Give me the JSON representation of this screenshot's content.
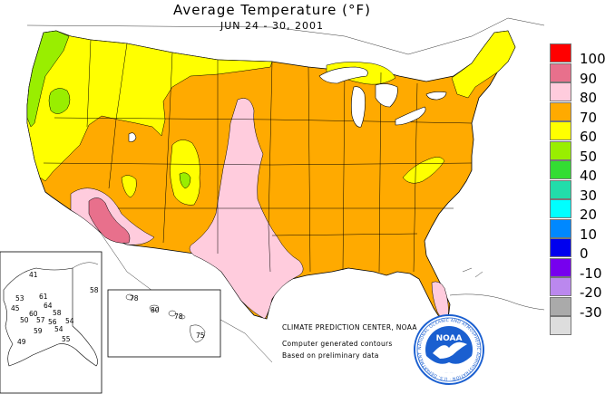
{
  "header": {
    "title": "Average Temperature (°F)",
    "subtitle": "JUN 24 - 30, 2001"
  },
  "legend": {
    "items": [
      {
        "label": "100",
        "color": "#ff0000"
      },
      {
        "label": "90",
        "color": "#e8708c"
      },
      {
        "label": "80",
        "color": "#ffccdd"
      },
      {
        "label": "70",
        "color": "#ffaa00"
      },
      {
        "label": "60",
        "color": "#ffff00"
      },
      {
        "label": "50",
        "color": "#99ee00"
      },
      {
        "label": "40",
        "color": "#33dd33"
      },
      {
        "label": "30",
        "color": "#22ddaa"
      },
      {
        "label": "20",
        "color": "#00ffff"
      },
      {
        "label": "10",
        "color": "#0088ff"
      },
      {
        "label": "0",
        "color": "#0000ee"
      },
      {
        "label": "-10",
        "color": "#7700ee"
      },
      {
        "label": "-20",
        "color": "#bb88ee"
      },
      {
        "label": "-30",
        "color": "#aaaaaa"
      },
      {
        "label": "",
        "color": "#dddddd"
      }
    ]
  },
  "alaska": {
    "values": [
      "41",
      "58",
      "53",
      "61",
      "64",
      "45",
      "60",
      "58",
      "50",
      "57",
      "56",
      "54",
      "59",
      "54",
      "49",
      "55"
    ]
  },
  "hawaii": {
    "values": [
      "78",
      "80",
      "78",
      "75"
    ]
  },
  "credits": {
    "line1": "CLIMATE PREDICTION CENTER, NOAA",
    "line2": "Computer generated contours",
    "line3": "Based on preliminary data"
  },
  "logo": {
    "acronym": "NOAA",
    "ring_text": "NATIONAL OCEANIC AND ATMOSPHERIC ADMINISTRATION · U.S. DEPARTMENT OF COMMERCE"
  },
  "colors": {
    "zone_80": "#ffccdd",
    "zone_90": "#e8708c",
    "zone_70": "#ffaa00",
    "zone_60": "#ffff00",
    "zone_50": "#99ee00",
    "water": "#ffffff",
    "noaa_blue": "#1a5fd0"
  }
}
